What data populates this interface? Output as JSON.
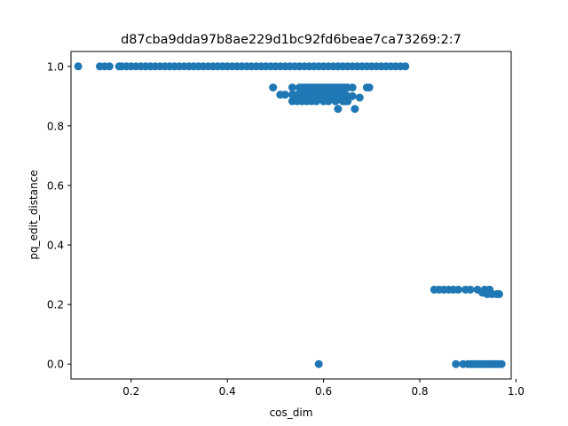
{
  "chart_data": {
    "type": "scatter",
    "title": "d87cba9dda97b8ae229d1bc92fd6beae7ca73269:2:7",
    "xlabel": "cos_dim",
    "ylabel": "pq_edit_distance",
    "xlim": [
      0.075,
      0.99
    ],
    "ylim": [
      -0.05,
      1.05
    ],
    "xticks": [
      0.2,
      0.4,
      0.6,
      0.8,
      1.0
    ],
    "xtick_labels": [
      "0.2",
      "0.4",
      "0.6",
      "0.8",
      "1.0"
    ],
    "yticks": [
      0.0,
      0.2,
      0.4,
      0.6,
      0.8,
      1.0
    ],
    "ytick_labels": [
      "0.0",
      "0.2",
      "0.4",
      "0.6",
      "0.8",
      "1.0"
    ],
    "grid": false,
    "legend": "none",
    "marker_color": "#1f77b4",
    "series": [
      {
        "points": [
          [
            0.09,
            1.0
          ],
          [
            0.135,
            1.0
          ],
          [
            0.145,
            1.0
          ],
          [
            0.155,
            1.0
          ],
          [
            0.175,
            1.0
          ],
          [
            0.18,
            1.0
          ],
          [
            0.19,
            1.0
          ],
          [
            0.2,
            1.0
          ],
          [
            0.21,
            1.0
          ],
          [
            0.22,
            1.0
          ],
          [
            0.23,
            1.0
          ],
          [
            0.24,
            1.0
          ],
          [
            0.25,
            1.0
          ],
          [
            0.26,
            1.0
          ],
          [
            0.27,
            1.0
          ],
          [
            0.28,
            1.0
          ],
          [
            0.29,
            1.0
          ],
          [
            0.3,
            1.0
          ],
          [
            0.31,
            1.0
          ],
          [
            0.32,
            1.0
          ],
          [
            0.33,
            1.0
          ],
          [
            0.34,
            1.0
          ],
          [
            0.35,
            1.0
          ],
          [
            0.36,
            1.0
          ],
          [
            0.37,
            1.0
          ],
          [
            0.38,
            1.0
          ],
          [
            0.39,
            1.0
          ],
          [
            0.4,
            1.0
          ],
          [
            0.41,
            1.0
          ],
          [
            0.42,
            1.0
          ],
          [
            0.43,
            1.0
          ],
          [
            0.44,
            1.0
          ],
          [
            0.45,
            1.0
          ],
          [
            0.46,
            1.0
          ],
          [
            0.47,
            1.0
          ],
          [
            0.48,
            1.0
          ],
          [
            0.49,
            1.0
          ],
          [
            0.5,
            1.0
          ],
          [
            0.51,
            1.0
          ],
          [
            0.52,
            1.0
          ],
          [
            0.53,
            1.0
          ],
          [
            0.54,
            1.0
          ],
          [
            0.55,
            1.0
          ],
          [
            0.56,
            1.0
          ],
          [
            0.57,
            1.0
          ],
          [
            0.58,
            1.0
          ],
          [
            0.59,
            1.0
          ],
          [
            0.6,
            1.0
          ],
          [
            0.61,
            1.0
          ],
          [
            0.62,
            1.0
          ],
          [
            0.63,
            1.0
          ],
          [
            0.64,
            1.0
          ],
          [
            0.65,
            1.0
          ],
          [
            0.66,
            1.0
          ],
          [
            0.67,
            1.0
          ],
          [
            0.68,
            1.0
          ],
          [
            0.69,
            1.0
          ],
          [
            0.7,
            1.0
          ],
          [
            0.71,
            1.0
          ],
          [
            0.72,
            1.0
          ],
          [
            0.73,
            1.0
          ],
          [
            0.74,
            1.0
          ],
          [
            0.75,
            1.0
          ],
          [
            0.76,
            1.0
          ],
          [
            0.77,
            1.0
          ],
          [
            0.495,
            0.929
          ],
          [
            0.51,
            0.905
          ],
          [
            0.52,
            0.905
          ],
          [
            0.535,
            0.929
          ],
          [
            0.55,
            0.929
          ],
          [
            0.555,
            0.929
          ],
          [
            0.56,
            0.929
          ],
          [
            0.565,
            0.929
          ],
          [
            0.57,
            0.929
          ],
          [
            0.575,
            0.929
          ],
          [
            0.58,
            0.929
          ],
          [
            0.585,
            0.929
          ],
          [
            0.59,
            0.929
          ],
          [
            0.595,
            0.929
          ],
          [
            0.6,
            0.929
          ],
          [
            0.605,
            0.929
          ],
          [
            0.61,
            0.929
          ],
          [
            0.615,
            0.929
          ],
          [
            0.62,
            0.929
          ],
          [
            0.625,
            0.929
          ],
          [
            0.63,
            0.929
          ],
          [
            0.635,
            0.929
          ],
          [
            0.64,
            0.929
          ],
          [
            0.645,
            0.929
          ],
          [
            0.65,
            0.929
          ],
          [
            0.66,
            0.929
          ],
          [
            0.69,
            0.929
          ],
          [
            0.695,
            0.929
          ],
          [
            0.535,
            0.905
          ],
          [
            0.545,
            0.905
          ],
          [
            0.555,
            0.905
          ],
          [
            0.565,
            0.905
          ],
          [
            0.575,
            0.905
          ],
          [
            0.585,
            0.905
          ],
          [
            0.595,
            0.905
          ],
          [
            0.605,
            0.905
          ],
          [
            0.615,
            0.905
          ],
          [
            0.625,
            0.905
          ],
          [
            0.635,
            0.905
          ],
          [
            0.645,
            0.905
          ],
          [
            0.54,
            0.9
          ],
          [
            0.55,
            0.9
          ],
          [
            0.56,
            0.9
          ],
          [
            0.57,
            0.9
          ],
          [
            0.58,
            0.9
          ],
          [
            0.59,
            0.9
          ],
          [
            0.6,
            0.9
          ],
          [
            0.61,
            0.9
          ],
          [
            0.62,
            0.9
          ],
          [
            0.63,
            0.9
          ],
          [
            0.64,
            0.9
          ],
          [
            0.65,
            0.9
          ],
          [
            0.66,
            0.9
          ],
          [
            0.675,
            0.895
          ],
          [
            0.535,
            0.883
          ],
          [
            0.545,
            0.883
          ],
          [
            0.555,
            0.883
          ],
          [
            0.565,
            0.883
          ],
          [
            0.575,
            0.883
          ],
          [
            0.585,
            0.883
          ],
          [
            0.6,
            0.883
          ],
          [
            0.61,
            0.883
          ],
          [
            0.625,
            0.883
          ],
          [
            0.64,
            0.883
          ],
          [
            0.645,
            0.883
          ],
          [
            0.65,
            0.883
          ],
          [
            0.63,
            0.857
          ],
          [
            0.665,
            0.857
          ],
          [
            0.83,
            0.25
          ],
          [
            0.84,
            0.25
          ],
          [
            0.85,
            0.25
          ],
          [
            0.86,
            0.25
          ],
          [
            0.87,
            0.25
          ],
          [
            0.88,
            0.25
          ],
          [
            0.895,
            0.25
          ],
          [
            0.905,
            0.25
          ],
          [
            0.92,
            0.25
          ],
          [
            0.935,
            0.25
          ],
          [
            0.945,
            0.25
          ],
          [
            0.93,
            0.24
          ],
          [
            0.94,
            0.235
          ],
          [
            0.95,
            0.235
          ],
          [
            0.96,
            0.235
          ],
          [
            0.965,
            0.235
          ],
          [
            0.59,
            0.0
          ],
          [
            0.875,
            0.0
          ],
          [
            0.89,
            0.0
          ],
          [
            0.9,
            0.0
          ],
          [
            0.905,
            0.0
          ],
          [
            0.91,
            0.0
          ],
          [
            0.915,
            0.0
          ],
          [
            0.92,
            0.0
          ],
          [
            0.925,
            0.0
          ],
          [
            0.93,
            0.0
          ],
          [
            0.935,
            0.0
          ],
          [
            0.94,
            0.0
          ],
          [
            0.945,
            0.0
          ],
          [
            0.95,
            0.0
          ],
          [
            0.955,
            0.0
          ],
          [
            0.96,
            0.0
          ],
          [
            0.965,
            0.0
          ],
          [
            0.97,
            0.0
          ]
        ]
      }
    ]
  }
}
